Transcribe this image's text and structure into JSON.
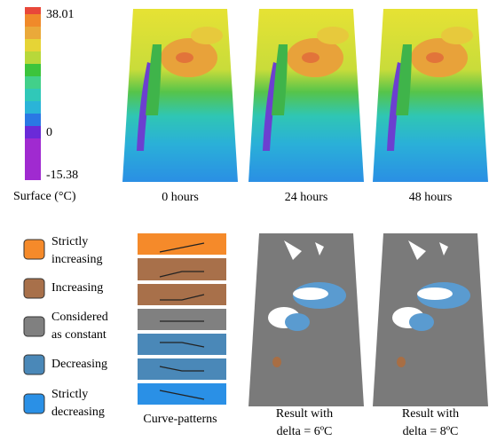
{
  "colorbar": {
    "max": "38.01",
    "zero": "0",
    "min": "-15.38",
    "label": "Surface (°C)"
  },
  "time_labels": [
    "0 hours",
    "24 hours",
    "48 hours"
  ],
  "legend": [
    {
      "lines": [
        "Strictly",
        "increasing"
      ]
    },
    {
      "lines": [
        "Increasing"
      ]
    },
    {
      "lines": [
        "Considered",
        "as constant"
      ]
    },
    {
      "lines": [
        "Decreasing"
      ]
    },
    {
      "lines": [
        "Strictly",
        "decreasing"
      ]
    }
  ],
  "curve_patterns_label": "Curve-patterns",
  "results": [
    {
      "lines": [
        "Result with",
        "delta = 6ºC"
      ]
    },
    {
      "lines": [
        "Result with",
        "delta = 8ºC"
      ]
    }
  ]
}
